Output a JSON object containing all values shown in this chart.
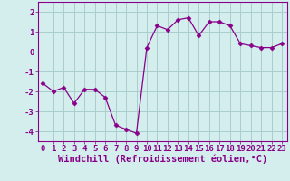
{
  "x": [
    0,
    1,
    2,
    3,
    4,
    5,
    6,
    7,
    8,
    9,
    10,
    11,
    12,
    13,
    14,
    15,
    16,
    17,
    18,
    19,
    20,
    21,
    22,
    23
  ],
  "y": [
    -1.6,
    -2.0,
    -1.8,
    -2.6,
    -1.9,
    -1.9,
    -2.3,
    -3.7,
    -3.9,
    -4.1,
    0.2,
    1.3,
    1.1,
    1.6,
    1.7,
    0.8,
    1.5,
    1.5,
    1.3,
    0.4,
    0.3,
    0.2,
    0.2,
    0.4
  ],
  "line_color": "#880088",
  "marker": "D",
  "marker_size": 2.5,
  "bg_color": "#d4eeee",
  "grid_color": "#aacccc",
  "xlabel": "Windchill (Refroidissement éolien,°C)",
  "ylim": [
    -4.5,
    2.5
  ],
  "xlim": [
    -0.5,
    23.5
  ],
  "yticks": [
    -4,
    -3,
    -2,
    -1,
    0,
    1,
    2
  ],
  "tick_fontsize": 6.5,
  "xlabel_fontsize": 7.5
}
